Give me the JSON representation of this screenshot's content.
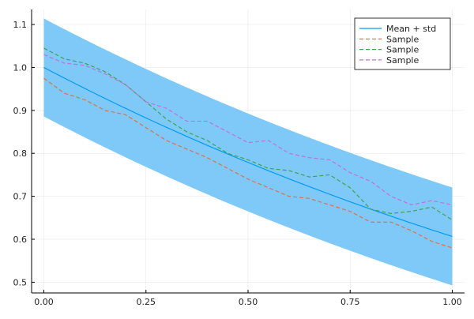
{
  "chart_data": {
    "type": "line",
    "title": "",
    "xlabel": "",
    "ylabel": "",
    "xlim": [
      -0.03,
      1.03
    ],
    "ylim": [
      0.475,
      1.135
    ],
    "xticks": [
      0,
      0.25,
      0.5,
      0.75,
      1.0
    ],
    "xtick_labels": [
      "0.00",
      "0.25",
      "0.50",
      "0.75",
      "1.00"
    ],
    "yticks": [
      0.5,
      0.6,
      0.7,
      0.8,
      0.9,
      1.0,
      1.1
    ],
    "ytick_labels": [
      "0.5",
      "0.6",
      "0.7",
      "0.8",
      "0.9",
      "1.0",
      "1.1"
    ],
    "grid": true,
    "legend_position": "top-right",
    "mean": {
      "name": "Mean + std",
      "color": "#009af9",
      "band_color": "#7fc9f9",
      "std": 0.114,
      "formula": "exp(-0.5x)"
    },
    "x": [
      0,
      0.05,
      0.1,
      0.15,
      0.2,
      0.25,
      0.3,
      0.35,
      0.4,
      0.45,
      0.5,
      0.55,
      0.6,
      0.65,
      0.7,
      0.75,
      0.8,
      0.85,
      0.9,
      0.95,
      1.0
    ],
    "series": [
      {
        "name": "Sample",
        "color": "#e26f46",
        "values": [
          0.975,
          0.94,
          0.925,
          0.9,
          0.89,
          0.86,
          0.83,
          0.81,
          0.79,
          0.765,
          0.74,
          0.72,
          0.7,
          0.695,
          0.68,
          0.665,
          0.64,
          0.64,
          0.62,
          0.595,
          0.58
        ]
      },
      {
        "name": "Sample",
        "color": "#3da44d",
        "values": [
          1.045,
          1.02,
          1.01,
          0.99,
          0.96,
          0.92,
          0.88,
          0.85,
          0.83,
          0.8,
          0.785,
          0.765,
          0.76,
          0.745,
          0.75,
          0.72,
          0.67,
          0.66,
          0.665,
          0.675,
          0.645
        ]
      },
      {
        "name": "Sample",
        "color": "#c271d2",
        "values": [
          1.03,
          1.01,
          1.005,
          0.985,
          0.96,
          0.92,
          0.905,
          0.875,
          0.875,
          0.85,
          0.825,
          0.83,
          0.8,
          0.79,
          0.785,
          0.755,
          0.735,
          0.7,
          0.68,
          0.69,
          0.68
        ]
      }
    ]
  }
}
